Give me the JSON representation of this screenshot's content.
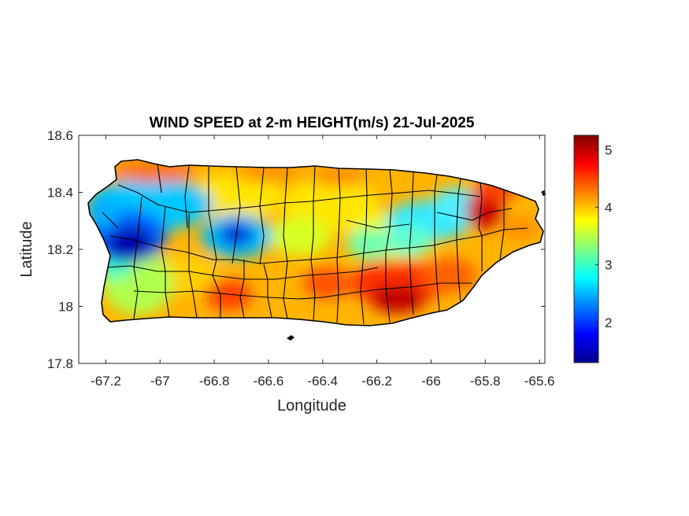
{
  "chart_data": {
    "type": "heatmap",
    "title": "WIND SPEED at 2-m HEIGHT(m/s) 21-Jul-2025",
    "xlabel": "Longitude",
    "ylabel": "Latitude",
    "xlim": [
      -67.3,
      -65.58
    ],
    "ylim": [
      17.8,
      18.6
    ],
    "xticks": [
      -67.2,
      -67,
      -66.8,
      -66.6,
      -66.4,
      -66.2,
      -66,
      -65.8,
      -65.6
    ],
    "yticks": [
      17.8,
      18,
      18.2,
      18.4,
      18.6
    ],
    "colorbar": {
      "colormap": "jet",
      "range": [
        1.3,
        5.25
      ],
      "ticks": [
        2,
        3,
        4,
        5
      ]
    },
    "grid": false,
    "hotspots": [
      {
        "lon": -67.1,
        "lat": 18.2,
        "value": 1.4
      },
      {
        "lon": -67.2,
        "lat": 18.33,
        "value": 2.3
      },
      {
        "lon": -66.72,
        "lat": 18.25,
        "value": 1.8
      },
      {
        "lon": -65.8,
        "lat": 18.32,
        "value": 5.0
      },
      {
        "lon": -66.12,
        "lat": 18.03,
        "value": 5.1
      },
      {
        "lon": -66.0,
        "lat": 18.28,
        "value": 3.0
      },
      {
        "lon": -66.25,
        "lat": 18.22,
        "value": 3.2
      },
      {
        "lon": -67.0,
        "lat": 18.48,
        "value": 4.4
      },
      {
        "lon": -66.9,
        "lat": 18.0,
        "value": 4.6
      }
    ],
    "colors": {
      "axis": "#262626",
      "boundary": "#000000",
      "background": "#ffffff"
    }
  }
}
